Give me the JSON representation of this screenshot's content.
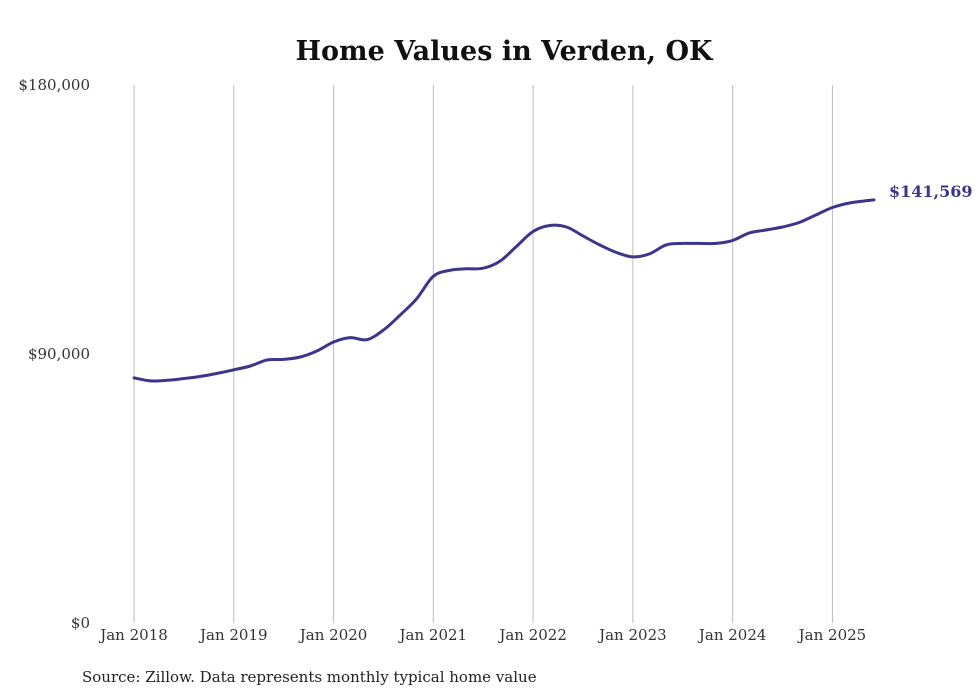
{
  "chart_data": {
    "type": "line",
    "title": "Home Values in Verden, OK",
    "source": "Source: Zillow. Data represents monthly typical home value",
    "ylim": [
      0,
      180000
    ],
    "xlim": [
      "2018-01",
      "2025-06"
    ],
    "y_ticks": [
      {
        "value": 0,
        "label": "$0"
      },
      {
        "value": 90000,
        "label": "$90,000"
      },
      {
        "value": 180000,
        "label": "$180,000"
      }
    ],
    "x_ticks": [
      {
        "value": "2018-01",
        "label": "Jan 2018"
      },
      {
        "value": "2019-01",
        "label": "Jan 2019"
      },
      {
        "value": "2020-01",
        "label": "Jan 2020"
      },
      {
        "value": "2021-01",
        "label": "Jan 2021"
      },
      {
        "value": "2022-01",
        "label": "Jan 2022"
      },
      {
        "value": "2023-01",
        "label": "Jan 2023"
      },
      {
        "value": "2024-01",
        "label": "Jan 2024"
      },
      {
        "value": "2025-01",
        "label": "Jan 2025"
      }
    ],
    "grid": {
      "vertical": true,
      "horizontal": false
    },
    "line_color": "#3d348b",
    "end_label": "$141,569",
    "series": [
      {
        "x": [
          "2018-01",
          "2018-03",
          "2018-05",
          "2018-07",
          "2018-09",
          "2018-11",
          "2019-01",
          "2019-03",
          "2019-05",
          "2019-07",
          "2019-09",
          "2019-11",
          "2020-01",
          "2020-03",
          "2020-05",
          "2020-07",
          "2020-09",
          "2020-11",
          "2021-01",
          "2021-03",
          "2021-05",
          "2021-07",
          "2021-09",
          "2021-11",
          "2022-01",
          "2022-03",
          "2022-05",
          "2022-07",
          "2022-09",
          "2022-11",
          "2023-01",
          "2023-03",
          "2023-05",
          "2023-07",
          "2023-09",
          "2023-11",
          "2024-01",
          "2024-03",
          "2024-05",
          "2024-07",
          "2024-09",
          "2024-11",
          "2025-01",
          "2025-03",
          "2025-06"
        ],
        "y": [
          82000,
          81000,
          81200,
          81800,
          82500,
          83500,
          84700,
          86000,
          88000,
          88200,
          89000,
          91000,
          94000,
          95500,
          94800,
          98000,
          103000,
          108500,
          116000,
          118000,
          118500,
          118700,
          121000,
          126000,
          131000,
          133000,
          132500,
          129500,
          126500,
          124000,
          122500,
          123500,
          126500,
          127000,
          127000,
          127000,
          128000,
          130500,
          131500,
          132500,
          134000,
          136500,
          139000,
          140500,
          141569
        ]
      }
    ]
  }
}
